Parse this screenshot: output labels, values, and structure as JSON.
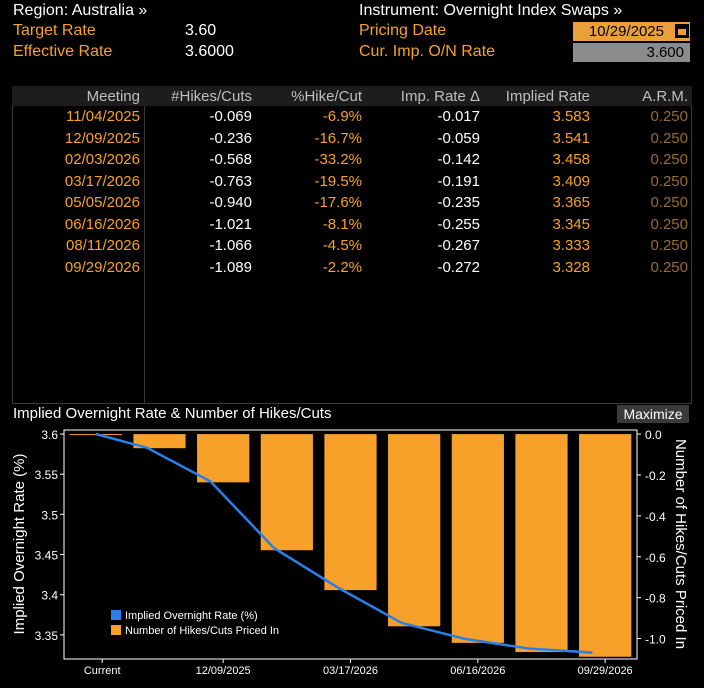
{
  "header": {
    "region_label": "Region: Australia »",
    "target_rate_label": "Target Rate",
    "target_rate_value": "3.60",
    "effective_rate_label": "Effective Rate",
    "effective_rate_value": "3.6000",
    "instrument_label": "Instrument: Overnight Index Swaps »",
    "pricing_date_label": "Pricing Date",
    "pricing_date_value": "10/29/2025",
    "cur_rate_label": "Cur. Imp. O/N Rate",
    "cur_rate_value": "3.600"
  },
  "table": {
    "columns": [
      "Meeting",
      "#Hikes/Cuts",
      "%Hike/Cut",
      "Imp. Rate Δ",
      "Implied Rate",
      "A.R.M."
    ],
    "rows": [
      [
        "11/04/2025",
        "-0.069",
        "-6.9%",
        "-0.017",
        "3.583",
        "0.250"
      ],
      [
        "12/09/2025",
        "-0.236",
        "-16.7%",
        "-0.059",
        "3.541",
        "0.250"
      ],
      [
        "02/03/2026",
        "-0.568",
        "-33.2%",
        "-0.142",
        "3.458",
        "0.250"
      ],
      [
        "03/17/2026",
        "-0.763",
        "-19.5%",
        "-0.191",
        "3.409",
        "0.250"
      ],
      [
        "05/05/2026",
        "-0.940",
        "-17.6%",
        "-0.235",
        "3.365",
        "0.250"
      ],
      [
        "06/16/2026",
        "-1.021",
        "-8.1%",
        "-0.255",
        "3.345",
        "0.250"
      ],
      [
        "08/11/2026",
        "-1.066",
        "-4.5%",
        "-0.267",
        "3.333",
        "0.250"
      ],
      [
        "09/29/2026",
        "-1.089",
        "-2.2%",
        "-0.272",
        "3.328",
        "0.250"
      ]
    ]
  },
  "chart_panel": {
    "title": "Implied Overnight Rate & Number of Hikes/Cuts",
    "maximize_label": "Maximize"
  },
  "chart_data": {
    "type": "bar",
    "categories": [
      "Current",
      "11/04/2025",
      "12/09/2025",
      "02/03/2026",
      "03/17/2026",
      "05/05/2026",
      "06/16/2026",
      "08/11/2026",
      "09/29/2026"
    ],
    "x_tick_labels": [
      "Current",
      "12/09/2025",
      "03/17/2026",
      "06/16/2026",
      "09/29/2026"
    ],
    "series": [
      {
        "name": "Implied Overnight Rate (%)",
        "type": "line",
        "color": "#2a7fe8",
        "axis": "left",
        "values": [
          3.6,
          3.583,
          3.541,
          3.458,
          3.409,
          3.365,
          3.345,
          3.333,
          3.328
        ]
      },
      {
        "name": "Number of Hikes/Cuts Priced In",
        "type": "bar",
        "color": "#f7a12b",
        "axis": "right",
        "values": [
          0,
          -0.069,
          -0.236,
          -0.568,
          -0.763,
          -0.94,
          -1.021,
          -1.066,
          -1.089
        ]
      }
    ],
    "ylabel": "Implied Overnight Rate (%)",
    "y2label": "Number of Hikes/Cuts Priced In",
    "ylim": [
      3.32,
      3.605
    ],
    "y2lim": [
      -1.1,
      0.02
    ],
    "yticks": [
      "3.6",
      "3.55",
      "3.5",
      "3.45",
      "3.4",
      "3.35"
    ],
    "y2ticks": [
      "0.0",
      "-0.2",
      "-0.4",
      "-0.6",
      "-0.8",
      "-1.0"
    ],
    "legend": "bottom-left",
    "grid": false
  }
}
